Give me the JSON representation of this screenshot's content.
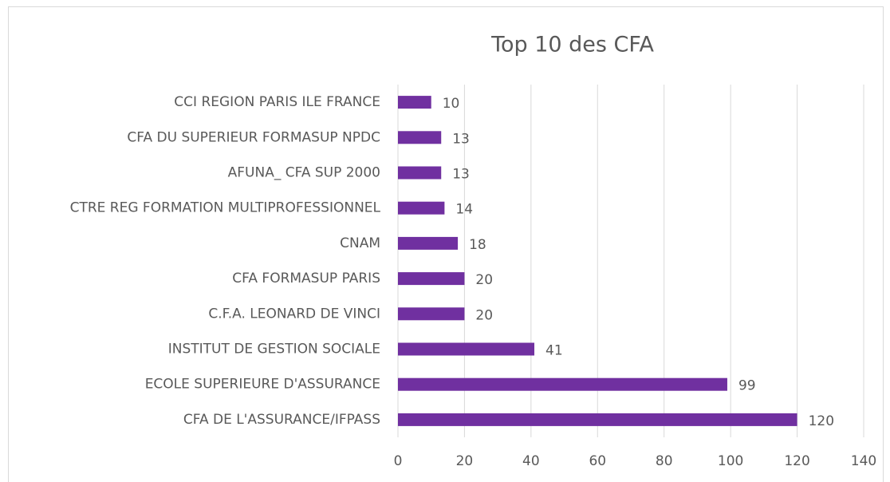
{
  "chart_data": {
    "type": "bar",
    "orientation": "horizontal",
    "title": "Top 10 des CFA",
    "categories": [
      "CCI REGION PARIS ILE FRANCE",
      "CFA DU SUPERIEUR FORMASUP NPDC",
      "AFUNA_ CFA SUP 2000",
      "CTRE REG FORMATION MULTIPROFESSIONNEL",
      "CNAM",
      "CFA FORMASUP PARIS",
      "C.F.A. LEONARD DE VINCI",
      "INSTITUT DE GESTION SOCIALE",
      "ECOLE SUPERIEURE D'ASSURANCE",
      "CFA DE L'ASSURANCE/IFPASS"
    ],
    "values": [
      10,
      13,
      13,
      14,
      18,
      20,
      20,
      41,
      99,
      120
    ],
    "color": "#7030a0",
    "xlim": [
      0,
      140
    ],
    "xticks": [
      0,
      20,
      40,
      60,
      80,
      100,
      120,
      140
    ],
    "grid": true
  }
}
